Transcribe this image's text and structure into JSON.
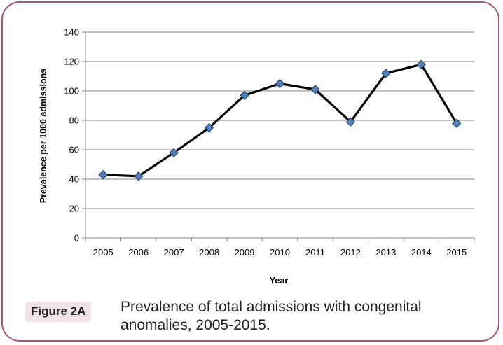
{
  "chart_data": {
    "type": "line",
    "x": [
      "2005",
      "2006",
      "2007",
      "2008",
      "2009",
      "2010",
      "2011",
      "2012",
      "2013",
      "2014",
      "2015"
    ],
    "series": [
      {
        "values": [
          43,
          42,
          58,
          75,
          97,
          105,
          101,
          79,
          112,
          118,
          78
        ]
      }
    ],
    "xlabel": "Year",
    "ylabel": "Prevalence per 1000 admissions",
    "ylim": [
      0,
      140
    ],
    "yticks": [
      0,
      20,
      40,
      60,
      80,
      100,
      120,
      140
    ],
    "grid": true,
    "marker": "diamond",
    "line_color": "#000000",
    "marker_color": "#4f81bd"
  },
  "caption": {
    "label": "Figure 2A",
    "text": "Prevalence of total admissions with congenital anomalies, 2005-2015."
  },
  "colors": {
    "frame_border": "#a5577f",
    "label_background": "#f2e2ea",
    "gridline": "#868686"
  }
}
